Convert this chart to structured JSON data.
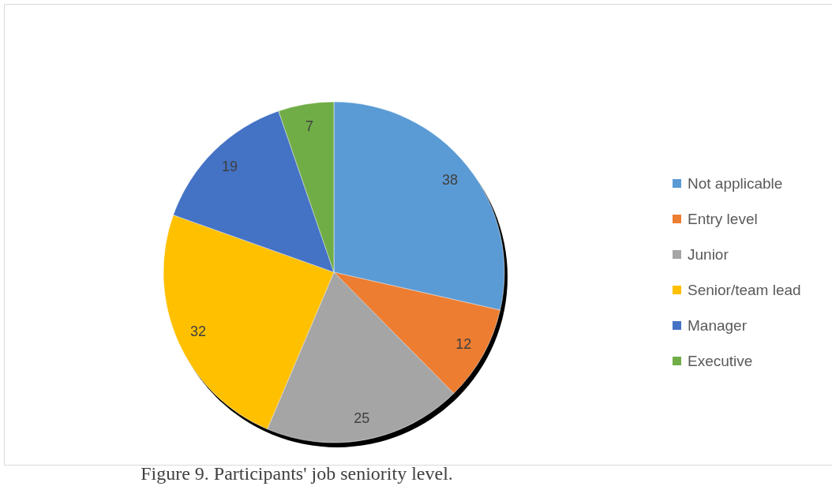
{
  "chart_data": {
    "type": "pie",
    "categories": [
      "Not applicable",
      "Entry level",
      "Junior",
      "Senior/team lead",
      "Manager",
      "Executive"
    ],
    "values": [
      38,
      12,
      25,
      32,
      19,
      7
    ],
    "colors": [
      "#5b9bd5",
      "#ed7d31",
      "#a5a5a5",
      "#ffc000",
      "#4472c4",
      "#70ad47"
    ],
    "data_labels": true,
    "legend": "right",
    "annotations": [
      "Figure 9. Participants' job seniority level."
    ]
  }
}
